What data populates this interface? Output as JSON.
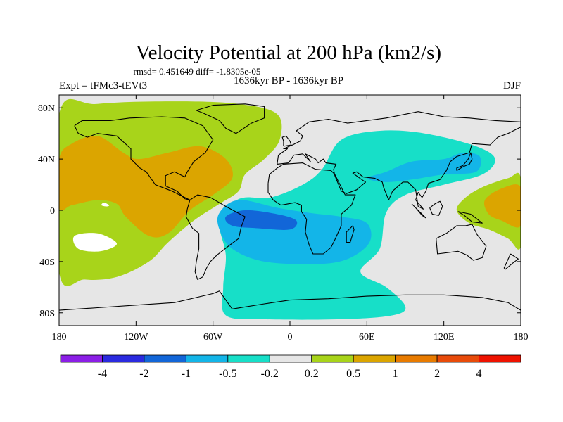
{
  "chart_data": {
    "type": "heatmap",
    "title": "Velocity Potential at 200 hPa (km2/s)",
    "stats_line": "rmsd= 0.451649 diff= -1.8305e-05",
    "period_label": "1636kyr BP - 1636kyr BP",
    "experiment_label": "Expt = tFMc3-tEVt3",
    "season_label": "DJF",
    "projection": "cylindrical equidistant (global)",
    "xaxis": {
      "range": [
        -180,
        180
      ],
      "ticks": [
        {
          "value": -180,
          "label": "180"
        },
        {
          "value": -120,
          "label": "120W"
        },
        {
          "value": -60,
          "label": "60W"
        },
        {
          "value": 0,
          "label": "0"
        },
        {
          "value": 60,
          "label": "60E"
        },
        {
          "value": 120,
          "label": "120E"
        },
        {
          "value": 180,
          "label": "180"
        }
      ]
    },
    "yaxis": {
      "range": [
        -90,
        90
      ],
      "ticks": [
        {
          "value": 80,
          "label": "80N"
        },
        {
          "value": 40,
          "label": "40N"
        },
        {
          "value": 0,
          "label": "0"
        },
        {
          "value": -40,
          "label": "40S"
        },
        {
          "value": -80,
          "label": "80S"
        }
      ]
    },
    "colorbar": {
      "colors": [
        "#8b1ee6",
        "#2a2ae0",
        "#1266d8",
        "#13b5e8",
        "#17dfc8",
        "#e6e6e6",
        "#a8d41a",
        "#dba500",
        "#e87b00",
        "#e84b0a",
        "#ee1200"
      ],
      "boundaries": [
        -4,
        -2,
        -1,
        -0.5,
        -0.2,
        0.2,
        0.5,
        1,
        2,
        4
      ],
      "labels": [
        "-4",
        "-2",
        "-1",
        "-0.5",
        "-0.2",
        "0.2",
        "0.5",
        "1",
        "2",
        "4"
      ]
    },
    "regions": [
      {
        "name": "north-atlantic-pacific-positive",
        "level": "0.2 to 0.5",
        "color": "#a8d41a",
        "outline": [
          [
            -180,
            75
          ],
          [
            -150,
            83
          ],
          [
            -90,
            85
          ],
          [
            -40,
            83
          ],
          [
            -10,
            75
          ],
          [
            -8,
            55
          ],
          [
            -20,
            40
          ],
          [
            -35,
            28
          ],
          [
            -40,
            15
          ],
          [
            -55,
            5
          ],
          [
            -75,
            -8
          ],
          [
            -95,
            -25
          ],
          [
            -110,
            -40
          ],
          [
            -135,
            -52
          ],
          [
            -160,
            -54
          ],
          [
            -180,
            -48
          ]
        ]
      },
      {
        "name": "north-pacific-positive-core",
        "level": "0.5 to 1",
        "color": "#dba500",
        "outline": [
          [
            -180,
            40
          ],
          [
            -170,
            52
          ],
          [
            -150,
            58
          ],
          [
            -130,
            45
          ],
          [
            -118,
            40
          ],
          [
            -95,
            45
          ],
          [
            -70,
            50
          ],
          [
            -50,
            40
          ],
          [
            -45,
            25
          ],
          [
            -60,
            12
          ],
          [
            -78,
            0
          ],
          [
            -95,
            -18
          ],
          [
            -110,
            -20
          ],
          [
            -128,
            -5
          ],
          [
            -135,
            5
          ],
          [
            -150,
            8
          ],
          [
            -170,
            4
          ],
          [
            -180,
            2
          ]
        ]
      },
      {
        "name": "western-pacific-positive",
        "level": "0.2 to 0.5",
        "color": "#a8d41a",
        "outline": [
          [
            180,
            25
          ],
          [
            170,
            25
          ],
          [
            150,
            18
          ],
          [
            137,
            10
          ],
          [
            130,
            0
          ],
          [
            140,
            -10
          ],
          [
            155,
            -15
          ],
          [
            170,
            -22
          ],
          [
            180,
            -28
          ]
        ]
      },
      {
        "name": "western-pacific-positive-core",
        "level": "0.5 to 1",
        "color": "#dba500",
        "outline": [
          [
            180,
            18
          ],
          [
            165,
            17
          ],
          [
            152,
            8
          ],
          [
            155,
            -3
          ],
          [
            165,
            -8
          ],
          [
            180,
            -12
          ]
        ]
      },
      {
        "name": "africa-asia-negative",
        "level": "-0.5 to -0.2",
        "color": "#17dfc8",
        "outline": [
          [
            -45,
            5
          ],
          [
            -35,
            10
          ],
          [
            -15,
            10
          ],
          [
            10,
            20
          ],
          [
            25,
            32
          ],
          [
            40,
            55
          ],
          [
            70,
            62
          ],
          [
            105,
            60
          ],
          [
            145,
            50
          ],
          [
            160,
            40
          ],
          [
            150,
            28
          ],
          [
            120,
            20
          ],
          [
            90,
            12
          ],
          [
            75,
            -2
          ],
          [
            70,
            -30
          ],
          [
            55,
            -48
          ],
          [
            75,
            -60
          ],
          [
            90,
            -75
          ],
          [
            80,
            -82
          ],
          [
            40,
            -85
          ],
          [
            -20,
            -85
          ],
          [
            -50,
            -82
          ],
          [
            -52,
            -60
          ],
          [
            -50,
            -35
          ],
          [
            -55,
            -10
          ]
        ]
      },
      {
        "name": "africa-indian-negative-core",
        "level": "-1 to -0.5",
        "color": "#13b5e8",
        "outline": [
          [
            -55,
            -2
          ],
          [
            -40,
            8
          ],
          [
            -10,
            2
          ],
          [
            15,
            -2
          ],
          [
            40,
            -5
          ],
          [
            60,
            -10
          ],
          [
            62,
            -25
          ],
          [
            45,
            -38
          ],
          [
            20,
            -42
          ],
          [
            -20,
            -40
          ],
          [
            -45,
            -30
          ],
          [
            -55,
            -15
          ]
        ]
      },
      {
        "name": "south-atlantic-negative-max",
        "level": "-2 to -1",
        "color": "#1266d8",
        "outline": [
          [
            -50,
            -5
          ],
          [
            -35,
            0
          ],
          [
            -10,
            -3
          ],
          [
            5,
            -8
          ],
          [
            0,
            -15
          ],
          [
            -25,
            -14
          ],
          [
            -45,
            -12
          ]
        ]
      },
      {
        "name": "east-asia-negative-core",
        "level": "-1 to -0.5",
        "color": "#13b5e8",
        "outline": [
          [
            60,
            25
          ],
          [
            75,
            30
          ],
          [
            95,
            38
          ],
          [
            120,
            40
          ],
          [
            135,
            45
          ],
          [
            148,
            42
          ],
          [
            145,
            30
          ],
          [
            120,
            28
          ],
          [
            95,
            24
          ],
          [
            75,
            22
          ]
        ]
      }
    ],
    "zero_islands": [
      {
        "name": "north-pacific-gap",
        "outline": [
          [
            -145,
            6
          ],
          [
            -141,
            4
          ],
          [
            -143,
            3
          ],
          [
            -147,
            4
          ]
        ]
      },
      {
        "name": "south-pacific-gap",
        "outline": [
          [
            -168,
            -20
          ],
          [
            -150,
            -18
          ],
          [
            -135,
            -26
          ],
          [
            -148,
            -32
          ],
          [
            -165,
            -30
          ]
        ]
      }
    ]
  }
}
